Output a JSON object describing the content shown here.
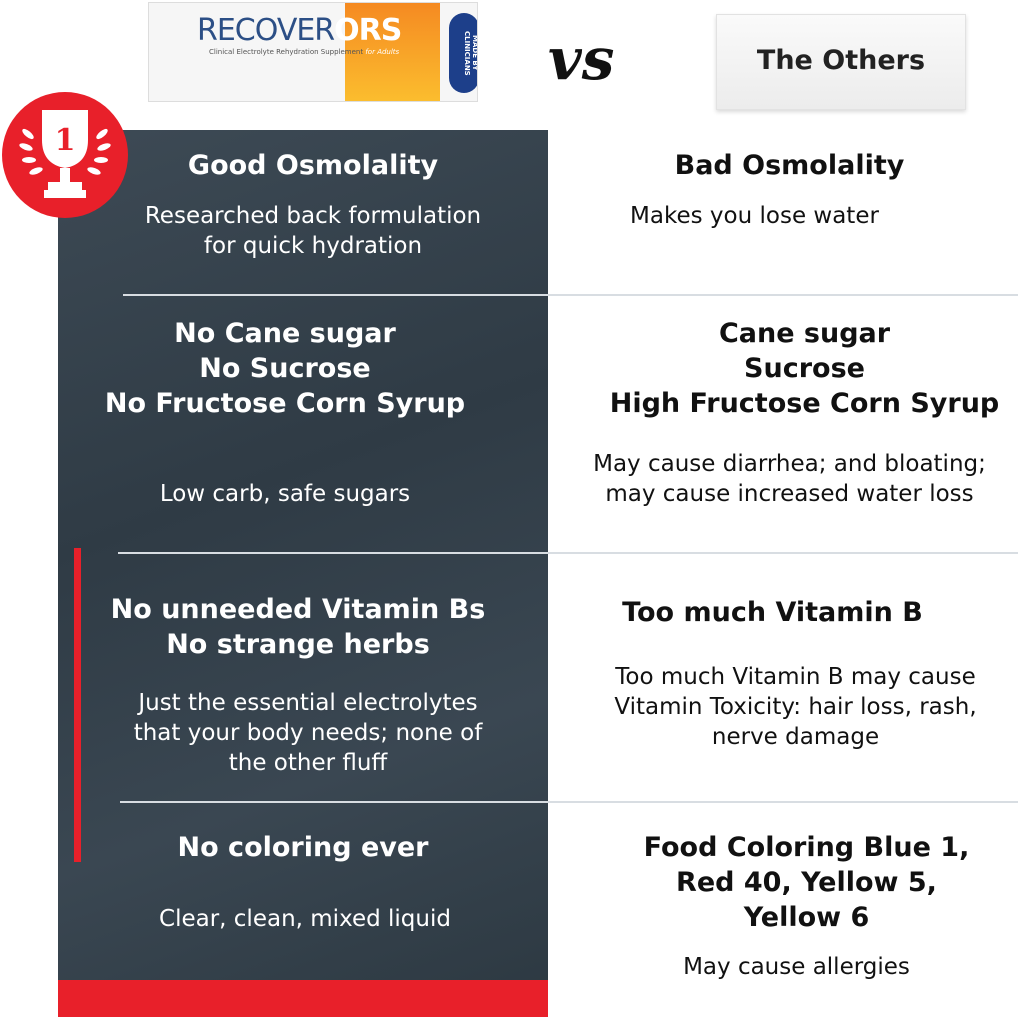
{
  "header": {
    "product": {
      "brand_main": "RECOVER",
      "brand_accent": "ORS",
      "subtitle": "Clinical Electrolyte Rehydration Supplement",
      "tag": "for Adults",
      "badge": "MADE BY CLINICIANS"
    },
    "vs_label": "vs",
    "competitor_label": "The Others",
    "rank_badge": "1"
  },
  "colors": {
    "accent": "#e8202a",
    "panel": "#34414b"
  },
  "rows": [
    {
      "left_title": "Good Osmolality",
      "left_text": [
        "Researched back formulation",
        "for quick hydration"
      ],
      "right_title": "Bad Osmolality",
      "right_text": [
        "Makes you lose water"
      ]
    },
    {
      "left_title": [
        "No Cane sugar",
        "No Sucrose",
        "No Fructose Corn Syrup"
      ],
      "left_text": [
        "Low carb, safe sugars"
      ],
      "right_title": [
        "Cane sugar",
        "Sucrose",
        "High Fructose Corn Syrup"
      ],
      "right_text": [
        "May cause diarrhea; and bloating;",
        "may cause increased water loss"
      ]
    },
    {
      "left_title": [
        "No unneeded Vitamin Bs",
        "No strange herbs"
      ],
      "left_text": [
        "Just the essential electrolytes",
        "that your body needs; none of",
        "the other fluff"
      ],
      "right_title": "Too much Vitamin B",
      "right_text": [
        "Too much Vitamin B may cause",
        "Vitamin Toxicity: hair loss, rash,",
        "nerve damage"
      ]
    },
    {
      "left_title": "No coloring ever",
      "left_text": [
        "Clear, clean, mixed liquid"
      ],
      "right_title": [
        "Food Coloring Blue 1,",
        "Red 40, Yellow 5,",
        "Yellow 6"
      ],
      "right_text": [
        "May cause allergies"
      ]
    }
  ]
}
